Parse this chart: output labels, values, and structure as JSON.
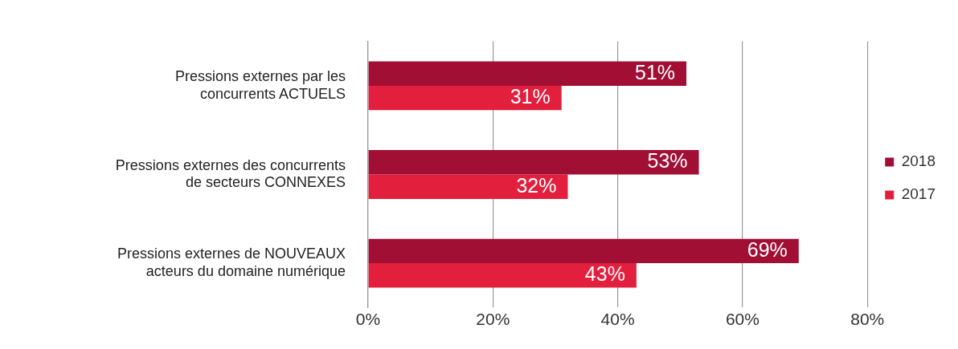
{
  "chart_data": {
    "type": "bar",
    "orientation": "horizontal",
    "categories": [
      "Pressions externes par les concurrents ACTUELS",
      "Pressions externes des concurrents de secteurs CONNEXES",
      "Pressions externes de NOUVEAUX acteurs du domaine numérique"
    ],
    "series": [
      {
        "name": "2018",
        "color": "#a20f35",
        "values": [
          51,
          53,
          69
        ],
        "value_labels": [
          "51%",
          "53%",
          "69%"
        ]
      },
      {
        "name": "2017",
        "color": "#e21f3d",
        "values": [
          31,
          32,
          43
        ],
        "value_labels": [
          "31%",
          "32%",
          "43%"
        ]
      }
    ],
    "xlim": [
      0,
      80
    ],
    "xticks": [
      {
        "value": 0,
        "label": "0%"
      },
      {
        "value": 20,
        "label": "20%"
      },
      {
        "value": 40,
        "label": "40%"
      },
      {
        "value": 60,
        "label": "60%"
      },
      {
        "value": 80,
        "label": "80%"
      }
    ],
    "grid": "x",
    "legend": "right"
  }
}
